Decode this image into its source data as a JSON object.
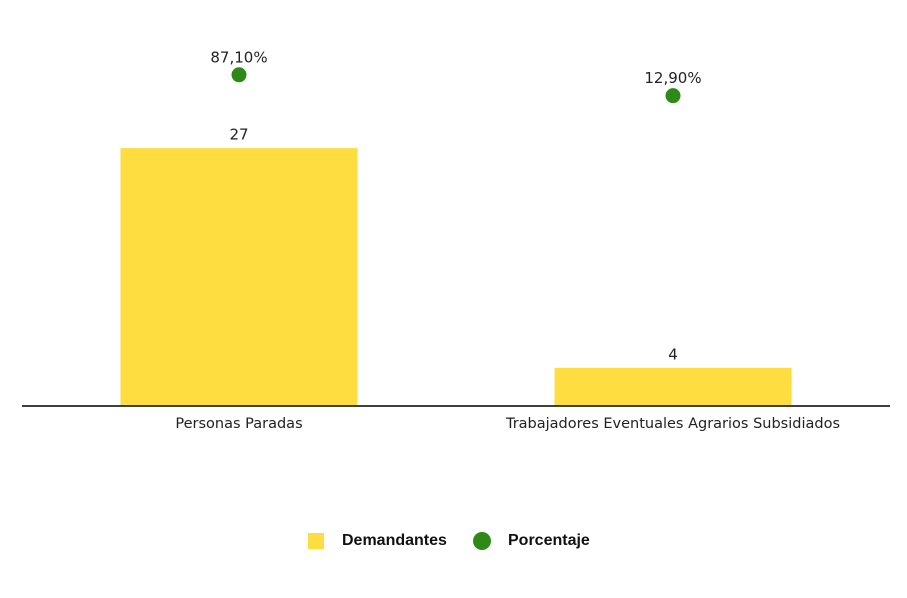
{
  "chart_data": {
    "type": "bar",
    "categories": [
      "Personas Paradas",
      "Trabajadores Eventuales Agrarios Subsidiados"
    ],
    "series": [
      {
        "name": "Demandantes",
        "type": "bar",
        "color": "#fddd3f",
        "values": [
          27,
          4
        ]
      },
      {
        "name": "Porcentaje",
        "type": "scatter",
        "axis": "y2",
        "color": "#2e8a17",
        "values": [
          87.1,
          12.9
        ],
        "value_labels": [
          "87,10%",
          "12,90%"
        ]
      }
    ],
    "ylim": [
      0,
      38
    ],
    "y2lim": [
      -1090,
      200
    ],
    "legend": "bottom"
  }
}
